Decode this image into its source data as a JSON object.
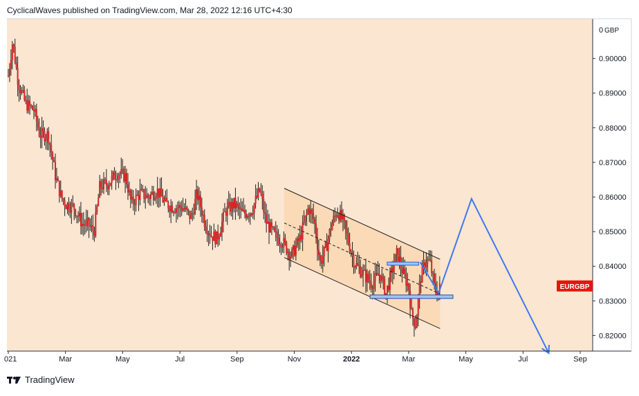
{
  "header": {
    "publish_line": "CyclicalWaves published on TradingView.com, Mar 28, 2022 12:16 UTC+4:30"
  },
  "footer": {
    "brand": "TradingView"
  },
  "chart_data": {
    "type": "candlestick",
    "symbol": "EURGBP",
    "currency": "GBP",
    "y_axis_currency_label": "GBP",
    "y_axis_top_label": "0",
    "ylim": [
      0.8155,
      0.9115
    ],
    "x_range_months": [
      0,
      20
    ],
    "y_ticks": [
      {
        "value": 0.9,
        "label": "0.90000"
      },
      {
        "value": 0.89,
        "label": "0.89000"
      },
      {
        "value": 0.88,
        "label": "0.88000"
      },
      {
        "value": 0.87,
        "label": "0.87000"
      },
      {
        "value": 0.86,
        "label": "0.86000"
      },
      {
        "value": 0.85,
        "label": "0.85000"
      },
      {
        "value": 0.84,
        "label": "0.84000"
      },
      {
        "value": 0.83,
        "label": "0.83000"
      },
      {
        "value": 0.82,
        "label": "0.82000"
      }
    ],
    "x_ticks": [
      {
        "pos": 0.0,
        "label": "021",
        "bold": false
      },
      {
        "pos": 2.0,
        "label": "Mar",
        "bold": false
      },
      {
        "pos": 4.0,
        "label": "May",
        "bold": false
      },
      {
        "pos": 6.0,
        "label": "Jul",
        "bold": false
      },
      {
        "pos": 8.0,
        "label": "Sep",
        "bold": false
      },
      {
        "pos": 10.0,
        "label": "Nov",
        "bold": false
      },
      {
        "pos": 12.0,
        "label": "2022",
        "bold": true
      },
      {
        "pos": 14.0,
        "label": "Mar",
        "bold": false
      },
      {
        "pos": 16.0,
        "label": "May",
        "bold": false
      },
      {
        "pos": 18.0,
        "label": "Jul",
        "bold": false
      },
      {
        "pos": 20.0,
        "label": "Sep",
        "bold": false
      }
    ],
    "price_path": [
      [
        0.0,
        0.895
      ],
      [
        0.15,
        0.905
      ],
      [
        0.35,
        0.893
      ],
      [
        0.6,
        0.887
      ],
      [
        0.9,
        0.885
      ],
      [
        1.1,
        0.878
      ],
      [
        1.4,
        0.878
      ],
      [
        1.65,
        0.866
      ],
      [
        1.85,
        0.86
      ],
      [
        2.0,
        0.858
      ],
      [
        2.3,
        0.857
      ],
      [
        2.6,
        0.852
      ],
      [
        2.8,
        0.852
      ],
      [
        3.0,
        0.85
      ],
      [
        3.2,
        0.863
      ],
      [
        3.5,
        0.864
      ],
      [
        3.8,
        0.867
      ],
      [
        4.1,
        0.866
      ],
      [
        4.3,
        0.858
      ],
      [
        4.6,
        0.861
      ],
      [
        4.9,
        0.86
      ],
      [
        5.2,
        0.862
      ],
      [
        5.5,
        0.858
      ],
      [
        5.8,
        0.857
      ],
      [
        6.1,
        0.857
      ],
      [
        6.4,
        0.854
      ],
      [
        6.6,
        0.861
      ],
      [
        6.9,
        0.852
      ],
      [
        7.1,
        0.849
      ],
      [
        7.3,
        0.848
      ],
      [
        7.6,
        0.856
      ],
      [
        7.9,
        0.858
      ],
      [
        8.2,
        0.855
      ],
      [
        8.5,
        0.856
      ],
      [
        8.8,
        0.862
      ],
      [
        9.0,
        0.853
      ],
      [
        9.3,
        0.849
      ],
      [
        9.6,
        0.847
      ],
      [
        9.9,
        0.843
      ],
      [
        10.2,
        0.848
      ],
      [
        10.5,
        0.857
      ],
      [
        10.7,
        0.853
      ],
      [
        10.9,
        0.841
      ],
      [
        11.1,
        0.845
      ],
      [
        11.3,
        0.852
      ],
      [
        11.5,
        0.856
      ],
      [
        11.7,
        0.853
      ],
      [
        11.9,
        0.847
      ],
      [
        12.1,
        0.841
      ],
      [
        12.4,
        0.838
      ],
      [
        12.7,
        0.835
      ],
      [
        13.0,
        0.838
      ],
      [
        13.2,
        0.832
      ],
      [
        13.4,
        0.838
      ],
      [
        13.6,
        0.844
      ],
      [
        13.8,
        0.838
      ],
      [
        14.0,
        0.834
      ],
      [
        14.1,
        0.826
      ],
      [
        14.25,
        0.823
      ],
      [
        14.4,
        0.836
      ],
      [
        14.6,
        0.842
      ],
      [
        14.75,
        0.841
      ],
      [
        14.9,
        0.834
      ],
      [
        15.0,
        0.832
      ],
      [
        15.1,
        0.834
      ]
    ],
    "drawings": {
      "channel_upper": [
        [
          9.65,
          0.8625
        ],
        [
          15.1,
          0.842
        ]
      ],
      "channel_lower": [
        [
          9.65,
          0.8425
        ],
        [
          15.1,
          0.822
        ]
      ],
      "channel_mid": [
        [
          9.65,
          0.8525
        ],
        [
          15.1,
          0.832
        ]
      ],
      "channel_fill": "#f9d8b4",
      "resistance_box": {
        "x0": 13.25,
        "x1": 14.35,
        "y0": 0.8403,
        "y1": 0.8412
      },
      "support_box": {
        "x0": 12.65,
        "x1": 15.55,
        "y0": 0.8307,
        "y1": 0.8317
      },
      "projection": [
        [
          14.4,
          0.8412
        ],
        [
          15.05,
          0.8323
        ],
        [
          16.2,
          0.8595
        ],
        [
          18.9,
          0.8149
        ]
      ],
      "projection_color": "#3c78f0"
    },
    "last_price_label": "EURGBP",
    "last_price_value": 0.8343,
    "colors": {
      "background": "#fbe6d2",
      "candle": "#d42525",
      "wick": "#1e1e1e",
      "label_bg": "#e5150d"
    }
  }
}
